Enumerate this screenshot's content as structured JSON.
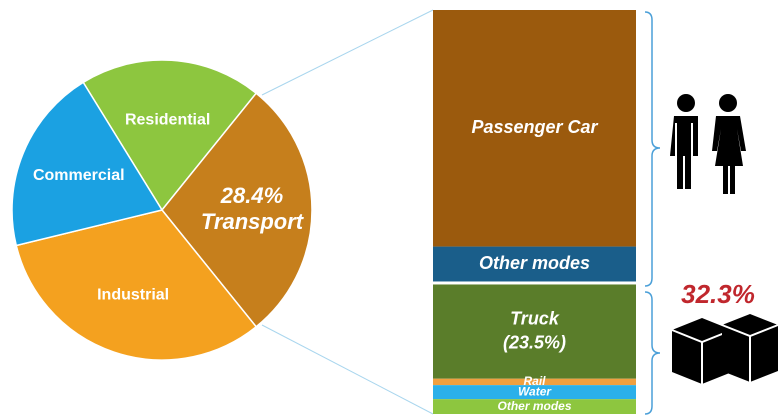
{
  "chart_data": [
    {
      "type": "pie",
      "categories": [
        "Residential",
        "Transport",
        "Industrial",
        "Commercial"
      ],
      "values": [
        19.6,
        28.4,
        32,
        20
      ],
      "value_labels": [
        null,
        "28.4%",
        null,
        null
      ],
      "colors": [
        "#8dc63f",
        "#c67f1c",
        "#f4a11f",
        "#1ba1e2"
      ]
    },
    {
      "type": "stacked_bar",
      "categories": [
        "Passenger Car",
        "Other modes",
        "Truck",
        "Rail",
        "Water",
        "Other modes"
      ],
      "values": [
        59,
        8.7,
        23.5,
        1.6,
        3.5,
        3.7
      ],
      "value_labels": [
        null,
        null,
        "(23.5%)",
        null,
        null,
        null
      ],
      "colors": [
        "#9b5a0d",
        "#1a5e8a",
        "#5a7d2a",
        "#f0a040",
        "#2bb0ea",
        "#8dc63f"
      ],
      "annotations": [
        "32.3%"
      ]
    }
  ]
}
